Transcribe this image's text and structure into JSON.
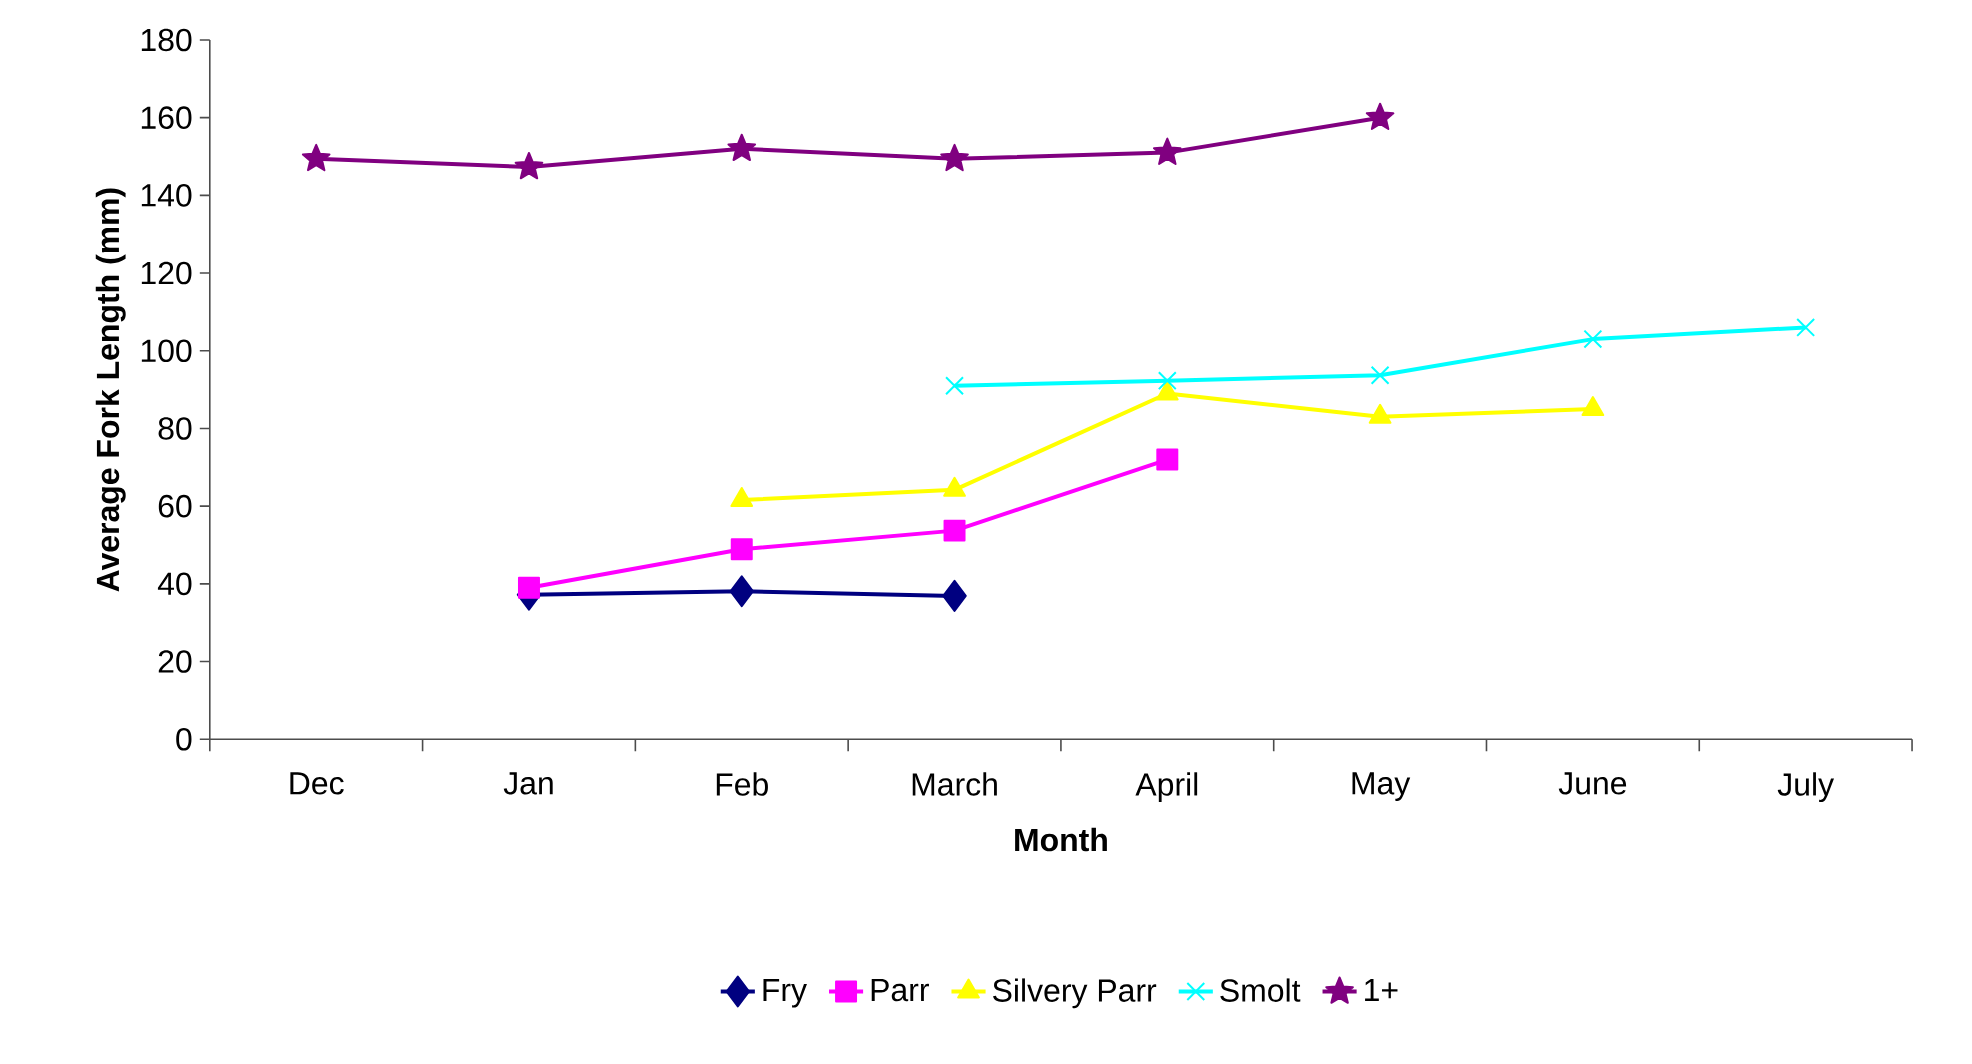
{
  "chart_data": {
    "type": "line",
    "xlabel": "Month",
    "ylabel": "Average Fork Length (mm)",
    "categories": [
      "Dec",
      "Jan",
      "Feb",
      "March",
      "April",
      "May",
      "June",
      "July"
    ],
    "ylim": [
      0,
      180
    ],
    "yticks": [
      0,
      20,
      40,
      60,
      80,
      100,
      120,
      140,
      160,
      180
    ],
    "grid": false,
    "legend": "bottom",
    "series": [
      {
        "name": "Fry",
        "color": "#000080",
        "marker": "diamond",
        "values": [
          null,
          37.2,
          38.1,
          36.9,
          null,
          null,
          null,
          null
        ]
      },
      {
        "name": "Parr",
        "color": "#ff00ff",
        "marker": "square",
        "values": [
          null,
          39,
          48.9,
          53.7,
          72,
          null,
          null,
          null
        ]
      },
      {
        "name": "Silvery Parr",
        "color": "#ffff00",
        "marker": "triangle",
        "values": [
          null,
          null,
          61.6,
          64.2,
          89,
          83,
          85,
          null
        ]
      },
      {
        "name": "Smolt",
        "color": "#00ffff",
        "marker": "cross",
        "values": [
          null,
          null,
          null,
          91,
          92.3,
          93.7,
          103,
          106
        ]
      },
      {
        "name": "1+",
        "color": "#800080",
        "marker": "star",
        "values": [
          149.4,
          147.3,
          152,
          149.4,
          151,
          160,
          null,
          null
        ]
      }
    ]
  }
}
